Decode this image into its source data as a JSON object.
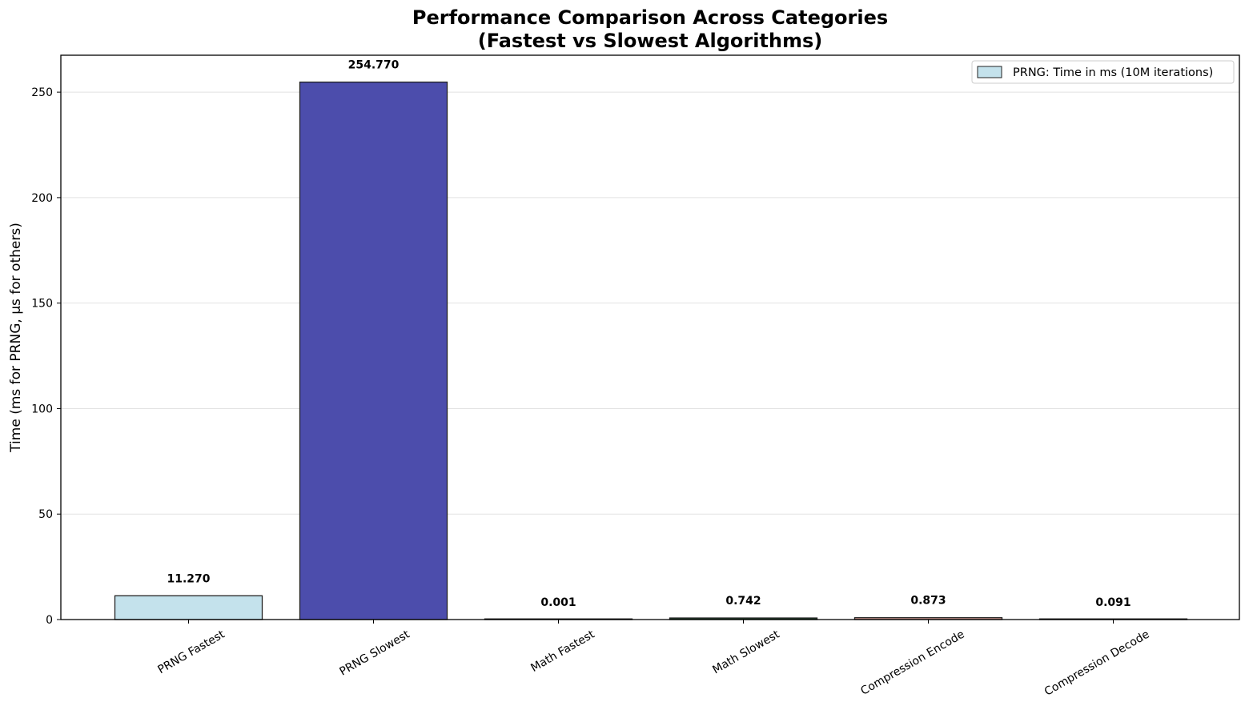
{
  "chart_data": {
    "type": "bar",
    "title": "Performance Comparison Across Categories",
    "subtitle": "(Fastest vs Slowest Algorithms)",
    "xlabel": "",
    "ylabel": "Time (ms for PRNG, µs for others)",
    "categories": [
      "PRNG Fastest",
      "PRNG Slowest",
      "Math Fastest",
      "Math Slowest",
      "Compression Encode",
      "Compression Decode"
    ],
    "values": [
      11.27,
      254.77,
      0.001,
      0.742,
      0.873,
      0.091
    ],
    "value_labels": [
      "11.270",
      "254.770",
      "0.001",
      "0.742",
      "0.873",
      "0.091"
    ],
    "colors": [
      "#c4e2ec",
      "#4c4dac",
      "#f2e4b6",
      "#1e4d2b",
      "#e8a9a0",
      "#6d7fb0"
    ],
    "edge_color": "#222222",
    "ylim": [
      0,
      267.5
    ],
    "yticks": [
      0,
      50,
      100,
      150,
      200,
      250
    ],
    "grid": "y",
    "legend": {
      "position": "top-right",
      "entries": [
        {
          "label": "PRNG: Time in ms (10M iterations)",
          "color": "#c4e2ec"
        }
      ]
    }
  }
}
